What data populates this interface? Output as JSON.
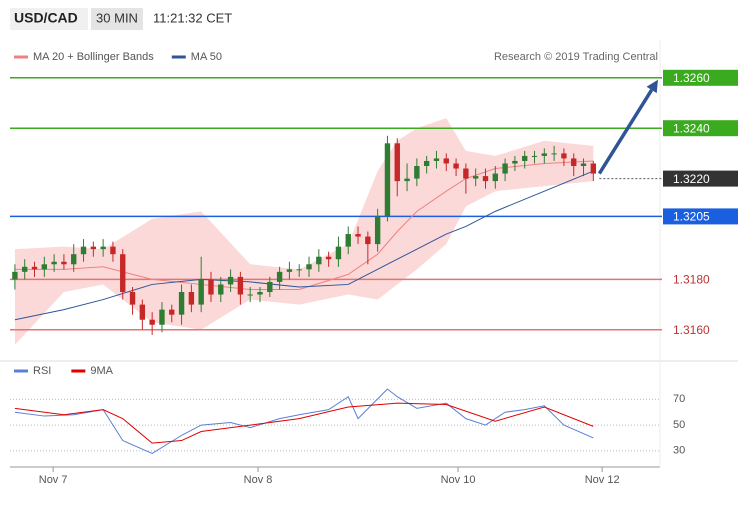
{
  "header": {
    "symbol": "USD/CAD",
    "interval": "30 MIN",
    "time": "11:21:32 CET"
  },
  "credit": "Research © 2019 Trading Central",
  "chart_data": [
    {
      "type": "candlestick",
      "ylim": [
        1.315,
        1.3275
      ],
      "xlim": [
        -0.5,
        65.8
      ],
      "up_color": "#2e7d32",
      "down_color": "#c62828",
      "open": [
        1.318,
        1.3183,
        1.3185,
        1.3184,
        1.3186,
        1.3187,
        1.3186,
        1.319,
        1.3193,
        1.3192,
        1.3193,
        1.319,
        1.3175,
        1.317,
        1.3164,
        1.3162,
        1.3168,
        1.3166,
        1.3175,
        1.317,
        1.318,
        1.3174,
        1.3178,
        1.3181,
        1.3174,
        1.3174,
        1.3175,
        1.3179,
        1.3183,
        1.3184,
        1.3184,
        1.3186,
        1.3189,
        1.3188,
        1.3193,
        1.3198,
        1.3197,
        1.3194,
        1.3205,
        1.3234,
        1.3219,
        1.322,
        1.3225,
        1.3227,
        1.3228,
        1.3226,
        1.3224,
        1.322,
        1.3221,
        1.3219,
        1.3222,
        1.3226,
        1.3227,
        1.3229,
        1.3229,
        1.323,
        1.323,
        1.3228,
        1.3225,
        1.3226
      ],
      "high": [
        1.3186,
        1.3188,
        1.3187,
        1.3189,
        1.319,
        1.319,
        1.3194,
        1.3196,
        1.3195,
        1.3196,
        1.3195,
        1.3192,
        1.3177,
        1.3172,
        1.3167,
        1.3171,
        1.317,
        1.3178,
        1.3178,
        1.3189,
        1.3183,
        1.3181,
        1.3184,
        1.3183,
        1.3177,
        1.3177,
        1.3181,
        1.3185,
        1.3187,
        1.3186,
        1.3189,
        1.3192,
        1.3191,
        1.3197,
        1.3201,
        1.3201,
        1.3199,
        1.3208,
        1.3237,
        1.3236,
        1.3226,
        1.3228,
        1.3229,
        1.3231,
        1.323,
        1.3228,
        1.3226,
        1.3224,
        1.3224,
        1.3225,
        1.3228,
        1.3229,
        1.3231,
        1.3231,
        1.3232,
        1.3233,
        1.3232,
        1.323,
        1.3228,
        1.3227
      ],
      "low": [
        1.3176,
        1.318,
        1.3181,
        1.3181,
        1.3183,
        1.3184,
        1.3183,
        1.3187,
        1.3189,
        1.3189,
        1.3187,
        1.3172,
        1.3166,
        1.316,
        1.3158,
        1.3159,
        1.3163,
        1.3162,
        1.3167,
        1.3167,
        1.3171,
        1.3171,
        1.3175,
        1.317,
        1.3171,
        1.3171,
        1.3173,
        1.3176,
        1.318,
        1.3181,
        1.3181,
        1.3183,
        1.3185,
        1.3185,
        1.319,
        1.3194,
        1.3186,
        1.3191,
        1.3203,
        1.3213,
        1.3215,
        1.3217,
        1.3222,
        1.3224,
        1.3223,
        1.3221,
        1.3214,
        1.3217,
        1.3216,
        1.3216,
        1.3219,
        1.3223,
        1.3224,
        1.3226,
        1.3226,
        1.3227,
        1.3225,
        1.3221,
        1.3221,
        1.3219
      ],
      "close": [
        1.3183,
        1.3185,
        1.3184,
        1.3186,
        1.3187,
        1.3186,
        1.319,
        1.3193,
        1.3192,
        1.3193,
        1.319,
        1.3175,
        1.317,
        1.3164,
        1.3162,
        1.3168,
        1.3166,
        1.3175,
        1.317,
        1.318,
        1.3174,
        1.3178,
        1.3181,
        1.3174,
        1.3174,
        1.3175,
        1.3179,
        1.3183,
        1.3184,
        1.3184,
        1.3186,
        1.3189,
        1.3188,
        1.3193,
        1.3198,
        1.3197,
        1.3194,
        1.3205,
        1.3234,
        1.3219,
        1.322,
        1.3225,
        1.3227,
        1.3228,
        1.3226,
        1.3224,
        1.322,
        1.3221,
        1.3219,
        1.3222,
        1.3226,
        1.3227,
        1.3229,
        1.3229,
        1.323,
        1.323,
        1.3228,
        1.3225,
        1.3226,
        1.3222
      ],
      "series": [
        {
          "name": "MA 20 + Bollinger Bands",
          "color": "#f08080",
          "band_color": "#fcd9d9",
          "x": [
            0,
            5,
            9,
            14,
            19,
            24,
            29,
            34,
            37,
            39,
            41,
            44,
            46,
            49,
            54,
            59
          ],
          "values": [
            1.3184,
            1.3184,
            1.3185,
            1.318,
            1.3178,
            1.3176,
            1.3176,
            1.3182,
            1.319,
            1.3199,
            1.3207,
            1.3215,
            1.322,
            1.3224,
            1.3226,
            1.3227
          ],
          "upper": [
            1.3192,
            1.3193,
            1.3192,
            1.3204,
            1.3207,
            1.3186,
            1.3184,
            1.3194,
            1.3223,
            1.3235,
            1.324,
            1.3244,
            1.3231,
            1.3229,
            1.3235,
            1.3233
          ],
          "lower": [
            1.3154,
            1.3175,
            1.3178,
            1.3163,
            1.316,
            1.3172,
            1.317,
            1.3174,
            1.3172,
            1.3178,
            1.3184,
            1.3194,
            1.3209,
            1.3215,
            1.3217,
            1.3219
          ]
        },
        {
          "name": "MA 50",
          "color": "#2f5597",
          "x": [
            0,
            5,
            9,
            14,
            19,
            24,
            29,
            34,
            37,
            39,
            41,
            44,
            46,
            49,
            54,
            59
          ],
          "values": [
            1.3164,
            1.3168,
            1.3172,
            1.3178,
            1.318,
            1.3179,
            1.3177,
            1.3178,
            1.3184,
            1.3188,
            1.3192,
            1.3198,
            1.3201,
            1.3207,
            1.3215,
            1.3223
          ]
        }
      ],
      "levels": [
        {
          "value": 1.326,
          "label": "1.3260",
          "color": "#3aaa1e",
          "boxed": true,
          "style": "solid"
        },
        {
          "value": 1.324,
          "label": "1.3240",
          "color": "#3aaa1e",
          "boxed": true,
          "style": "solid"
        },
        {
          "value": 1.322,
          "label": "1.3220",
          "color": "#333333",
          "boxed": true,
          "style": "dotted"
        },
        {
          "value": 1.3205,
          "label": "1.3205",
          "color": "#1a5fe0",
          "boxed": true,
          "style": "solid"
        },
        {
          "value": 1.318,
          "label": "1.3180",
          "color": "#e57373",
          "boxed": false,
          "style": "solid"
        },
        {
          "value": 1.316,
          "label": "1.3160",
          "color": "#e57373",
          "boxed": false,
          "style": "solid"
        }
      ],
      "arrow_color": "#2f5597"
    },
    {
      "type": "line",
      "ylim": [
        19,
        85
      ],
      "yticks": [
        30,
        50,
        70
      ],
      "xlim": [
        -0.5,
        65.8
      ],
      "grid": true,
      "xticks": [
        {
          "value": 3.9,
          "label": "Nov 7"
        },
        {
          "value": 24.8,
          "label": "Nov 8"
        },
        {
          "value": 45.2,
          "label": "Nov 10"
        },
        {
          "value": 59.9,
          "label": "Nov 12"
        }
      ],
      "series": [
        {
          "name": "RSI",
          "color": "#5b7fd6",
          "x": [
            0,
            3,
            6,
            9,
            11,
            14,
            17,
            19,
            22,
            24,
            27,
            29,
            32,
            34,
            35,
            38,
            39,
            41,
            44,
            46,
            48,
            50,
            52,
            54,
            56,
            59
          ],
          "values": [
            60,
            57,
            58,
            62,
            38,
            28,
            42,
            50,
            52,
            48,
            55,
            58,
            62,
            72,
            55,
            78,
            72,
            63,
            67,
            55,
            50,
            60,
            62,
            65,
            50,
            40
          ]
        },
        {
          "name": "9MA",
          "color": "#e00000",
          "x": [
            0,
            5,
            9,
            11,
            14,
            17,
            19,
            24,
            29,
            34,
            39,
            44,
            49,
            54,
            59
          ],
          "values": [
            63,
            58,
            62,
            55,
            36,
            38,
            45,
            50,
            55,
            64,
            67,
            66,
            53,
            64,
            49
          ]
        }
      ]
    }
  ]
}
